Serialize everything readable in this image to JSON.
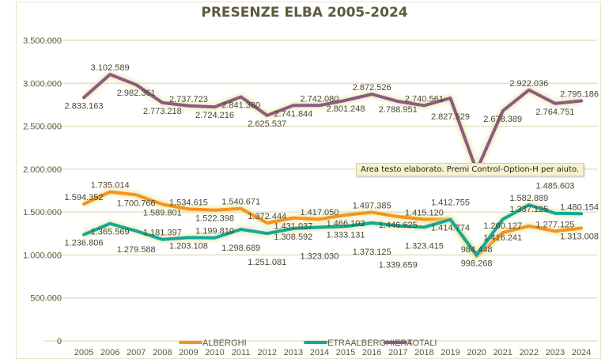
{
  "chart_data": {
    "type": "line",
    "title": "PRESENZE ELBA 2005-2024",
    "xlabel": "",
    "ylabel": "",
    "ylim": [
      0,
      3500000
    ],
    "y_ticks": [
      0,
      500000,
      1000000,
      1500000,
      2000000,
      2500000,
      3000000,
      3500000
    ],
    "y_tick_labels": [
      "0",
      "500.000",
      "1.000.000",
      "1.500.000",
      "2.000.000",
      "2.500.000",
      "3.000.000",
      "3.500.000"
    ],
    "grid": true,
    "legend_placement": "bottom",
    "categories": [
      "2005",
      "2006",
      "2007",
      "2008",
      "2009",
      "2010",
      "2011",
      "2012",
      "2013",
      "2014",
      "2015",
      "2016",
      "2017",
      "2018",
      "2019",
      "2020",
      "2021",
      "2022",
      "2023",
      "2024"
    ],
    "series": [
      {
        "name": "ALBERGHI",
        "color": "#f7931e",
        "values": [
          1594352,
          1735014,
          1700766,
          1589801,
          1534615,
          1522398,
          1540671,
          1372444,
          1431037,
          1417050,
          1466102,
          1497385,
          1446625,
          1415120,
          1414774,
          984448,
          1260127,
          1337125,
          1277125,
          1313008
        ],
        "labels": [
          "1.594.352",
          "1.735.014",
          "1.700.766",
          "1.589.801",
          "1.534.615",
          "1.522.398",
          "1.540.671",
          "1.372.444",
          "1.431.037",
          "1.417.050",
          "1.466.102",
          "1.497.385",
          "1.446.625",
          "1.415.120",
          "1.414.774",
          "984.448",
          "1.260.127",
          "1.337.125",
          "1.277.125",
          "1.313.008"
        ]
      },
      {
        "name": "ETRAALBERGHIERA",
        "color": "#12a89d",
        "values": [
          1236806,
          1365569,
          1279588,
          1181397,
          1203108,
          1199810,
          1298689,
          1251081,
          1308592,
          1323030,
          1333131,
          1373125,
          1339659,
          1323415,
          1412755,
          998268,
          1416241,
          1582889,
          1485603,
          1480154
        ],
        "labels": [
          "1.236.806",
          "1.365.569",
          "1.279.588",
          "1.181.397",
          "1.203.108",
          "1.199.810",
          "1.298.689",
          "1.251.081",
          "1.308.592",
          "1.323.030",
          "1.333.131",
          "1.373.125",
          "1.339.659",
          "1.323.415",
          "1.412.755",
          "998.268",
          "1.416.241",
          "1.582.889",
          "1.485.603",
          "1.480.154"
        ]
      },
      {
        "name": "TOTALI",
        "color": "#8c5a87",
        "values": [
          2833163,
          3102589,
          2982361,
          2773218,
          2737723,
          2724216,
          2841380,
          2625537,
          2741844,
          2742080,
          2801248,
          2872526,
          2788951,
          2740561,
          2827529,
          1982716,
          2678389,
          2922036,
          2764751,
          2795186
        ],
        "labels": [
          "2.833.163",
          "3.102.589",
          "2.982.361",
          "2.773.218",
          "2.737.723",
          "2.724.216",
          "2.841.380",
          "2.625.537",
          "2.741.844",
          "2.742.080",
          "2.801.248",
          "2.872.526",
          "2.788.951",
          "2.740.561",
          "2.827.529",
          null,
          "2.678.389",
          "2.922.036",
          "2.764.751",
          "2.795.186"
        ]
      }
    ]
  },
  "tooltip": "Area testo elaborato. Premi Control-Option-H per aiuto."
}
